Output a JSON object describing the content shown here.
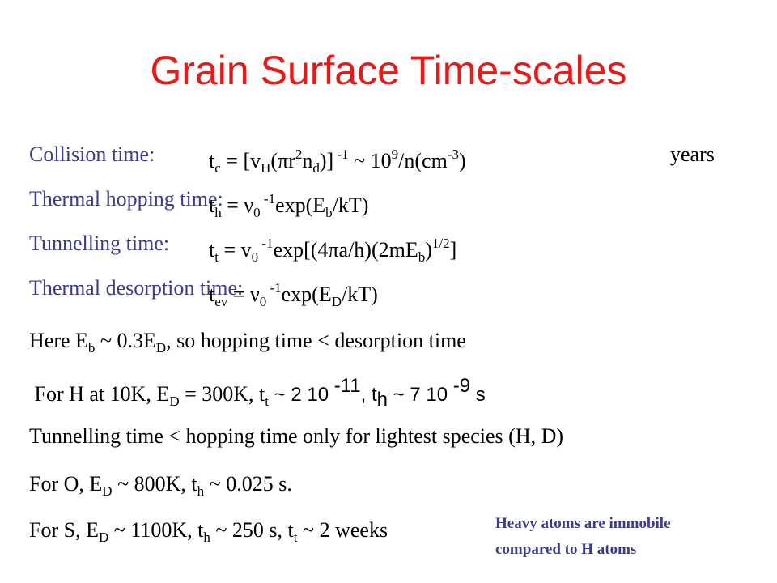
{
  "title": "Grain Surface Time-scales",
  "definitions": [
    {
      "label": "Collision time:",
      "formula": [
        {
          "text": "t"
        },
        {
          "sub": "c"
        },
        {
          "text": " = [v"
        },
        {
          "sub": "H"
        },
        {
          "text": "(πr"
        },
        {
          "sup": "2"
        },
        {
          "text": "n"
        },
        {
          "sub": "d"
        },
        {
          "text": ")]"
        },
        {
          "sup": " -1"
        },
        {
          "text": " ~ 10"
        },
        {
          "sup": "9"
        },
        {
          "text": "/n(cm"
        },
        {
          "sup": "-3"
        },
        {
          "text": ")"
        }
      ],
      "unit": "years"
    },
    {
      "label": "Thermal hopping time:",
      "formula": [
        {
          "text": "t"
        },
        {
          "sub": "h"
        },
        {
          "text": " = ν"
        },
        {
          "sub": "0"
        },
        {
          "sup": " -1"
        },
        {
          "text": "exp(E"
        },
        {
          "sub": "b"
        },
        {
          "text": "/kT)"
        }
      ]
    },
    {
      "label": "Tunnelling time:",
      "formula": [
        {
          "text": "t"
        },
        {
          "sub": "t"
        },
        {
          "text": " = v"
        },
        {
          "sub": "0"
        },
        {
          "sup": " -1"
        },
        {
          "text": "exp[(4πa/h)(2mE"
        },
        {
          "sub": "b"
        },
        {
          "text": ")"
        },
        {
          "sup": "1/2"
        },
        {
          "text": "]"
        }
      ]
    },
    {
      "label": "Thermal desorption time:",
      "formula": [
        {
          "text": "t"
        },
        {
          "sub": "ev"
        },
        {
          "text": " = ν"
        },
        {
          "sub": "0"
        },
        {
          "sup": " -1"
        },
        {
          "text": "exp(E"
        },
        {
          "sub": "D"
        },
        {
          "text": "/kT)"
        }
      ]
    }
  ],
  "notes": [
    [
      {
        "text": "Here E"
      },
      {
        "sub": "b"
      },
      {
        "text": " ~ 0.3E"
      },
      {
        "sub": "D"
      },
      {
        "text": ", so hopping time < desorption time"
      }
    ],
    [
      {
        "text": " For H at 10K, E"
      },
      {
        "sub": "D"
      },
      {
        "text": " = 300K, t"
      },
      {
        "sub": "t"
      },
      {
        "sans": " ~ 2 10"
      },
      {
        "sans_sup": " -11"
      },
      {
        "sans": ", t"
      },
      {
        "sans_sub": "h"
      },
      {
        "sans": " ~ 7 10"
      },
      {
        "sans_sup": " -9"
      },
      {
        "sans": " s"
      }
    ],
    [
      {
        "text": "Tunnelling time < hopping time only for lightest species (H, D)"
      }
    ],
    [
      {
        "text": "For O, E"
      },
      {
        "sub": "D"
      },
      {
        "text": " ~ 800K, t"
      },
      {
        "sub": "h"
      },
      {
        "text": " ~ 0.025 s."
      }
    ],
    [
      {
        "text": "For S, E"
      },
      {
        "sub": "D"
      },
      {
        "text": " ~ 1100K, t"
      },
      {
        "sub": "h"
      },
      {
        "text": " ~ 250 s, t"
      },
      {
        "sub": "t"
      },
      {
        "text": " ~ 2 weeks"
      }
    ]
  ],
  "callout": [
    "Heavy atoms are immobile",
    "compared to H atoms"
  ]
}
